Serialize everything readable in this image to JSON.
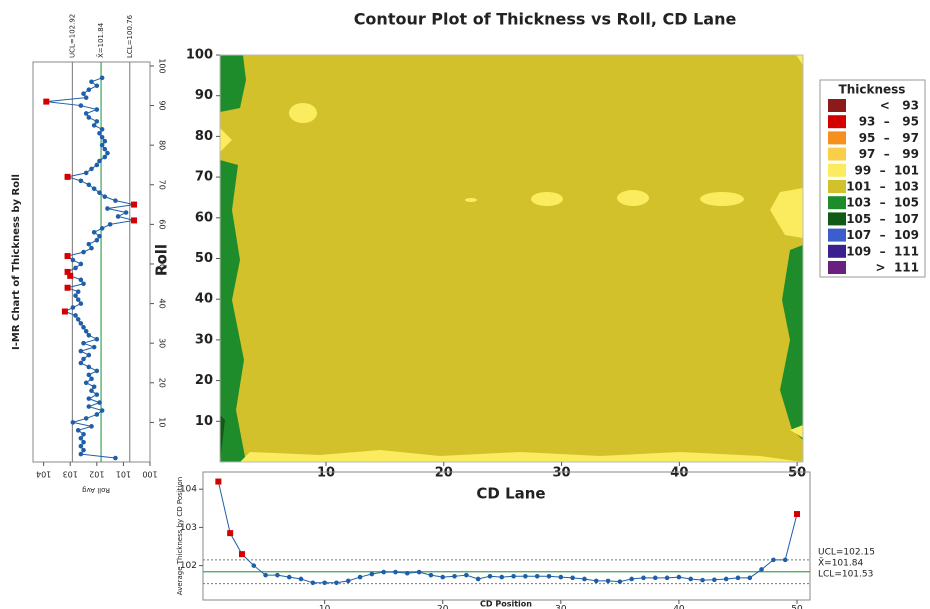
{
  "chart_data": [
    {
      "type": "control",
      "orientation": "vertical",
      "title": "I-MR Chart of Thickness by Roll",
      "ylabel": "Roll Avg",
      "x": [
        1,
        2,
        3,
        4,
        5,
        6,
        7,
        8,
        9,
        10,
        11,
        12,
        13,
        14,
        15,
        16,
        17,
        18,
        19,
        20,
        21,
        22,
        23,
        24,
        25,
        26,
        27,
        28,
        29,
        30,
        31,
        32,
        33,
        34,
        35,
        36,
        37,
        38,
        39,
        40,
        41,
        42,
        43,
        44,
        45,
        46,
        47,
        48,
        49,
        50,
        51,
        52,
        53,
        54,
        55,
        56,
        57,
        58,
        59,
        60,
        61,
        62,
        63,
        64,
        65,
        66,
        67,
        68,
        69,
        70,
        71,
        72,
        73,
        74,
        75,
        76,
        77,
        78,
        79,
        80,
        81,
        82,
        83,
        84,
        85,
        86,
        87,
        88,
        89,
        90,
        91,
        92,
        93,
        94,
        95,
        96,
        97
      ],
      "values": [
        101.3,
        102.6,
        102.5,
        102.6,
        102.5,
        102.6,
        102.5,
        102.7,
        102.2,
        102.9,
        102.4,
        102.0,
        101.8,
        102.3,
        101.9,
        102.3,
        102.0,
        102.2,
        102.1,
        102.4,
        102.2,
        102.3,
        102.0,
        102.3,
        102.6,
        102.5,
        102.3,
        102.6,
        102.1,
        102.5,
        102.0,
        102.3,
        102.4,
        102.5,
        102.6,
        102.7,
        102.8,
        103.2,
        102.9,
        102.6,
        102.7,
        102.8,
        102.7,
        103.1,
        102.5,
        102.6,
        103.0,
        103.1,
        102.8,
        102.6,
        102.9,
        103.1,
        102.5,
        102.2,
        102.3,
        102.0,
        101.9,
        102.1,
        101.8,
        101.5,
        100.6,
        101.2,
        100.9,
        101.6,
        100.6,
        101.3,
        101.7,
        101.9,
        102.1,
        102.3,
        102.6,
        103.1,
        102.4,
        102.2,
        102.0,
        101.9,
        101.7,
        101.6,
        101.7,
        101.8,
        101.7,
        101.8,
        101.9,
        101.8,
        102.1,
        102.0,
        102.3,
        102.4,
        102.0,
        102.6,
        103.9,
        102.4,
        102.5,
        102.3,
        102.0,
        102.2,
        101.8
      ],
      "xlim": [
        0,
        101
      ],
      "xticks": [
        10,
        20,
        30,
        40,
        50,
        60,
        70,
        80,
        90,
        100
      ],
      "ylim": [
        100,
        104.4
      ],
      "yticks": [
        100,
        101,
        102,
        103,
        104
      ],
      "limits": [
        {
          "value": 102.92,
          "label": "UCL=102.92"
        },
        {
          "value": 101.84,
          "label": "X̄=101.84"
        },
        {
          "value": 100.76,
          "label": "LCL=100.76"
        }
      ],
      "color": "#1f5fa8",
      "flag_color": "#d40000",
      "center_color": "#3aa655",
      "limit_color": "#777777"
    },
    {
      "type": "contour",
      "title": "Contour Plot of Thickness vs Roll, CD Lane",
      "xlabel": "CD Lane",
      "ylabel": "Roll",
      "xlim": [
        1,
        50.5
      ],
      "xticks": [
        10,
        20,
        30,
        40,
        50
      ],
      "ylim": [
        0,
        100
      ],
      "yticks": [
        10,
        20,
        30,
        40,
        50,
        60,
        70,
        80,
        90,
        100
      ],
      "legend_title": "Thickness",
      "legend": [
        {
          "label": "<   93",
          "color": "#8b1a1a"
        },
        {
          "label": "93  –   95",
          "color": "#d40000"
        },
        {
          "label": "95  –   97",
          "color": "#f5901e"
        },
        {
          "label": "97  –   99",
          "color": "#f9cf4a"
        },
        {
          "label": "99  –  101",
          "color": "#faec5e"
        },
        {
          "label": "101  –  103",
          "color": "#d2c12a"
        },
        {
          "label": "103  –  105",
          "color": "#1e8c2a"
        },
        {
          "label": "105  –  107",
          "color": "#0f5a14"
        },
        {
          "label": "107  –  109",
          "color": "#3a5fcd"
        },
        {
          "label": "109  –  111",
          "color": "#3a1f8f"
        },
        {
          "label": ">  111",
          "color": "#6a2080"
        }
      ]
    },
    {
      "type": "control",
      "orientation": "horizontal",
      "xlabel": "CD Position",
      "ylabel": "Average Thickness by CD Position",
      "x": [
        1,
        2,
        3,
        4,
        5,
        6,
        7,
        8,
        9,
        10,
        11,
        12,
        13,
        14,
        15,
        16,
        17,
        18,
        19,
        20,
        21,
        22,
        23,
        24,
        25,
        26,
        27,
        28,
        29,
        30,
        31,
        32,
        33,
        34,
        35,
        36,
        37,
        38,
        39,
        40,
        41,
        42,
        43,
        44,
        45,
        46,
        47,
        48,
        49,
        50
      ],
      "values": [
        104.2,
        102.85,
        102.3,
        102.0,
        101.75,
        101.75,
        101.7,
        101.65,
        101.55,
        101.55,
        101.55,
        101.6,
        101.7,
        101.78,
        101.83,
        101.83,
        101.8,
        101.83,
        101.75,
        101.7,
        101.72,
        101.75,
        101.65,
        101.72,
        101.7,
        101.72,
        101.72,
        101.72,
        101.72,
        101.7,
        101.68,
        101.65,
        101.6,
        101.6,
        101.58,
        101.65,
        101.68,
        101.68,
        101.68,
        101.7,
        101.65,
        101.62,
        101.63,
        101.65,
        101.68,
        101.68,
        101.9,
        102.15,
        102.15,
        103.35
      ],
      "xlim": [
        -0.3,
        51.1
      ],
      "xticks": [
        10,
        20,
        30,
        40,
        50
      ],
      "ylim": [
        101.1,
        104.45
      ],
      "yticks": [
        102,
        103,
        104
      ],
      "limits": [
        {
          "value": 102.15,
          "label": "UCL=102.15"
        },
        {
          "value": 101.84,
          "label": "X̄=101.84"
        },
        {
          "value": 101.53,
          "label": "LCL=101.53"
        }
      ],
      "color": "#1f5fa8",
      "flag_color": "#d40000",
      "center_color": "#3aa655",
      "limit_color": "#777777"
    }
  ]
}
